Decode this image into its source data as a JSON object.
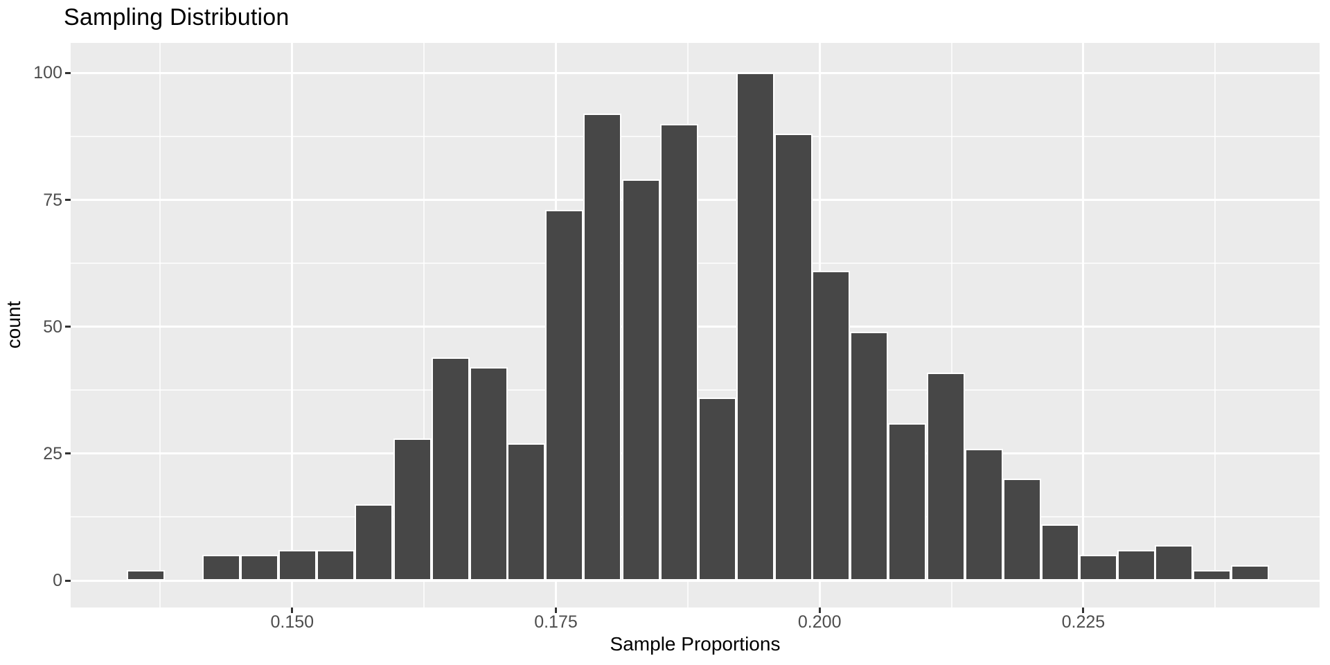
{
  "title": "Sampling Distribution",
  "axes": {
    "x": {
      "title": "Sample Proportions",
      "ticks": [
        {
          "label": "0.150",
          "value": 0.15
        },
        {
          "label": "0.175",
          "value": 0.175
        },
        {
          "label": "0.200",
          "value": 0.2
        },
        {
          "label": "0.225",
          "value": 0.225
        }
      ]
    },
    "y": {
      "title": "count",
      "ticks": [
        {
          "label": "0",
          "value": 0
        },
        {
          "label": "25",
          "value": 25
        },
        {
          "label": "50",
          "value": 50
        },
        {
          "label": "75",
          "value": 75
        },
        {
          "label": "100",
          "value": 100
        }
      ]
    }
  },
  "chart_data": {
    "type": "bar",
    "subtype": "histogram",
    "title": "Sampling Distribution",
    "xlabel": "Sample Proportions",
    "ylabel": "count",
    "n_bins": 30,
    "binwidth": 0.003613,
    "total_count": 1000,
    "x_bin_centers": [
      0.1361,
      0.1397,
      0.1433,
      0.1469,
      0.1505,
      0.1541,
      0.1577,
      0.1614,
      0.165,
      0.1686,
      0.1722,
      0.1758,
      0.1794,
      0.1831,
      0.1867,
      0.1903,
      0.1939,
      0.1975,
      0.2011,
      0.2047,
      0.2083,
      0.212,
      0.2156,
      0.2192,
      0.2228,
      0.2264,
      0.23,
      0.2336,
      0.2372,
      0.2408
    ],
    "counts": [
      2,
      0,
      5,
      5,
      6,
      6,
      15,
      28,
      44,
      42,
      27,
      73,
      92,
      79,
      90,
      36,
      100,
      88,
      61,
      49,
      31,
      41,
      26,
      20,
      11,
      5,
      6,
      7,
      2,
      3
    ],
    "xlim": [
      0.129,
      0.2475
    ],
    "ylim": [
      0,
      105
    ],
    "grid": "major-and-minor",
    "x_minor_gridlines": [
      0.1375,
      0.1625,
      0.1875,
      0.2125,
      0.2375
    ],
    "y_minor_gridlines": [
      12.5,
      37.5,
      62.5,
      87.5
    ],
    "legend": "none",
    "colors": {
      "bar_fill": "#474747",
      "bar_outline": "#FFFFFF",
      "panel_background": "#EBEBEB",
      "gridline": "#FFFFFF",
      "tick_label": "#4D4D4D",
      "tick_mark": "#333333",
      "text": "#000000",
      "page_background": "#FFFFFF"
    }
  }
}
